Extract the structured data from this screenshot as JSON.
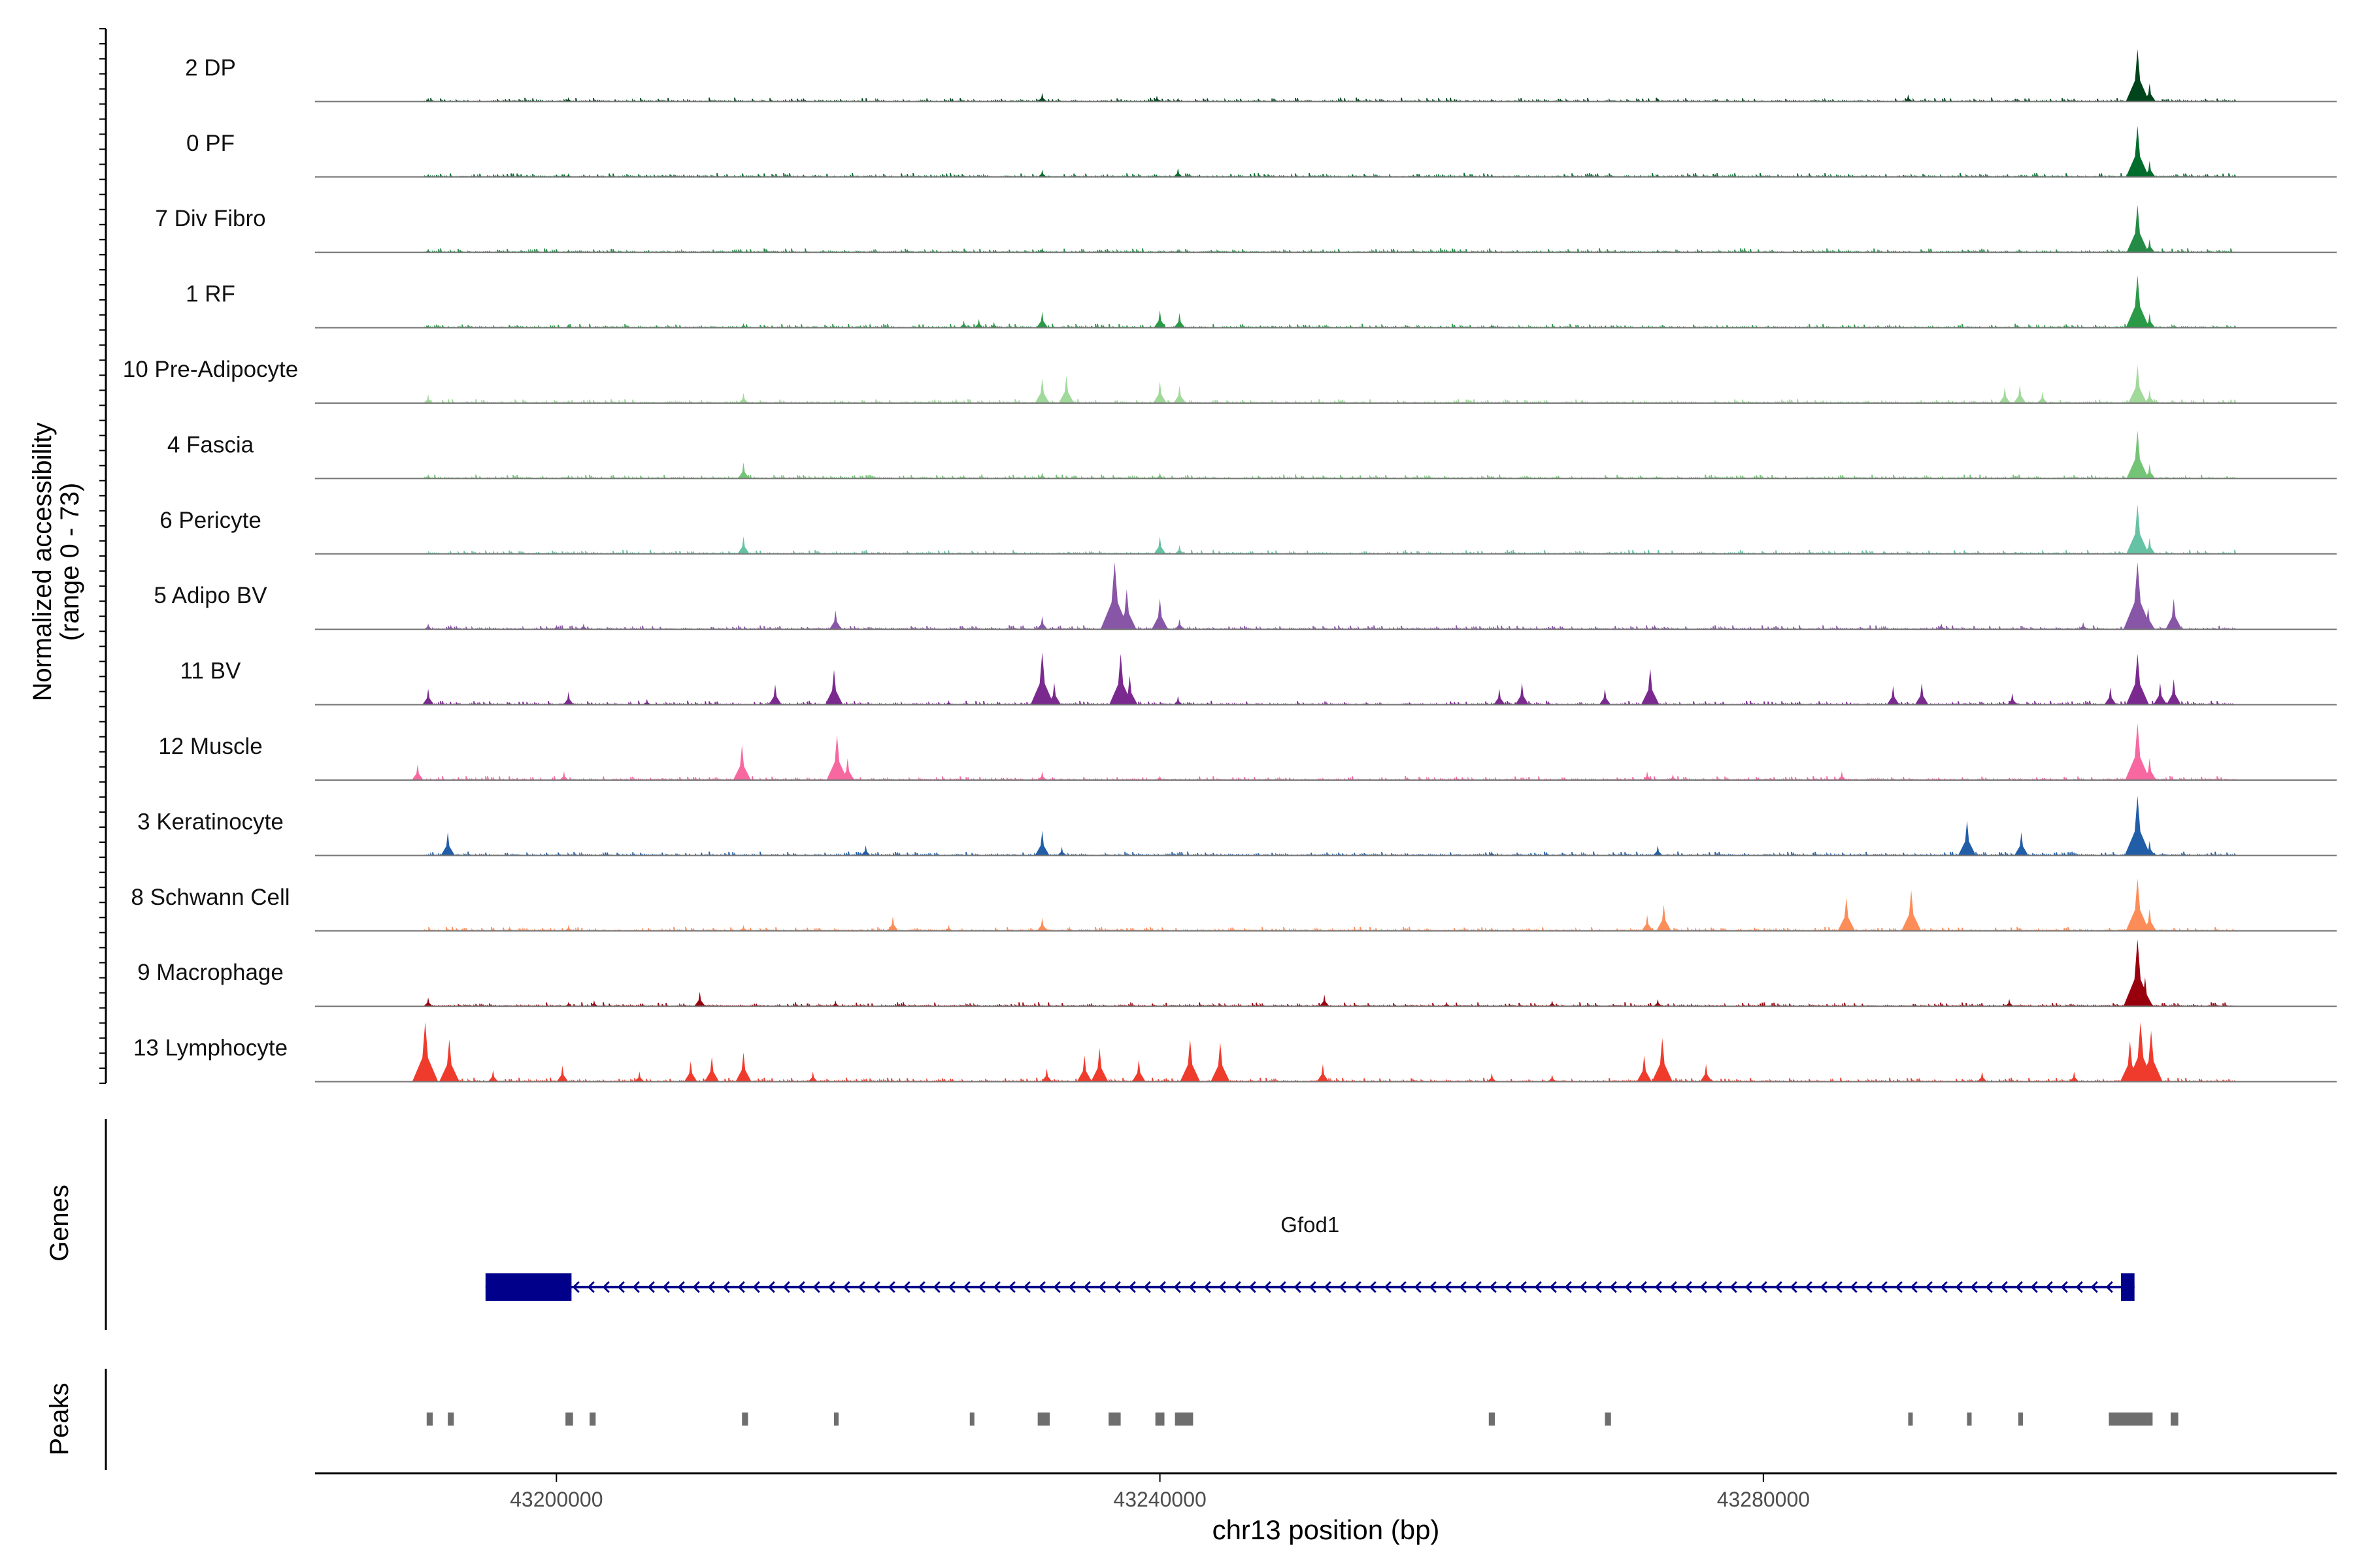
{
  "chart_data": {
    "type": "area",
    "title": "",
    "ylabel_line1": "Normalized accessibility",
    "ylabel_line2": "(range 0 - 73)",
    "ylim": [
      0,
      73
    ],
    "xlabel": "chr13 position (bp)",
    "xlim": [
      43184000,
      43318000
    ],
    "xticks": [
      43200000,
      43240000,
      43280000
    ],
    "xtick_labels": [
      "43200000",
      "43240000",
      "43280000"
    ],
    "tracks": [
      {
        "name": "2 DP",
        "color": "#00441B",
        "peaks": [
          [
            43191500,
            0.05
          ],
          [
            43200800,
            0.06
          ],
          [
            43232200,
            0.12
          ],
          [
            43239800,
            0.08
          ],
          [
            43241200,
            0.05
          ],
          [
            43262000,
            0.04
          ],
          [
            43273000,
            0.05
          ],
          [
            43289600,
            0.1
          ],
          [
            43304800,
            0.72
          ],
          [
            43305600,
            0.25
          ]
        ]
      },
      {
        "name": "0 PF",
        "color": "#006D2C",
        "peaks": [
          [
            43191500,
            0.04
          ],
          [
            43200800,
            0.05
          ],
          [
            43232200,
            0.1
          ],
          [
            43241200,
            0.12
          ],
          [
            43262000,
            0.04
          ],
          [
            43273000,
            0.04
          ],
          [
            43304800,
            0.7
          ],
          [
            43305600,
            0.22
          ]
        ]
      },
      {
        "name": "7 Div Fibro",
        "color": "#238B45",
        "peaks": [
          [
            43191500,
            0.05
          ],
          [
            43200800,
            0.04
          ],
          [
            43232200,
            0.06
          ],
          [
            43241200,
            0.05
          ],
          [
            43273000,
            0.04
          ],
          [
            43304800,
            0.65
          ],
          [
            43305600,
            0.18
          ]
        ]
      },
      {
        "name": "1 RF",
        "color": "#2B9A47",
        "peaks": [
          [
            43191500,
            0.04
          ],
          [
            43200800,
            0.05
          ],
          [
            43212400,
            0.06
          ],
          [
            43227000,
            0.1
          ],
          [
            43228000,
            0.12
          ],
          [
            43229000,
            0.08
          ],
          [
            43232200,
            0.22
          ],
          [
            43240000,
            0.24
          ],
          [
            43241300,
            0.2
          ],
          [
            43262000,
            0.05
          ],
          [
            43304800,
            0.72
          ],
          [
            43305600,
            0.2
          ]
        ]
      },
      {
        "name": "10 Pre-Adipocyte",
        "color": "#A1D99B",
        "peaks": [
          [
            43191500,
            0.12
          ],
          [
            43200800,
            0.04
          ],
          [
            43212400,
            0.14
          ],
          [
            43226500,
            0.06
          ],
          [
            43232200,
            0.34
          ],
          [
            43233800,
            0.38
          ],
          [
            43240000,
            0.3
          ],
          [
            43241300,
            0.24
          ],
          [
            43252000,
            0.05
          ],
          [
            43268000,
            0.05
          ],
          [
            43296000,
            0.22
          ],
          [
            43297000,
            0.25
          ],
          [
            43298500,
            0.16
          ],
          [
            43304800,
            0.52
          ],
          [
            43305600,
            0.18
          ]
        ]
      },
      {
        "name": "4 Fascia",
        "color": "#74C476",
        "peaks": [
          [
            43191500,
            0.06
          ],
          [
            43200800,
            0.05
          ],
          [
            43212400,
            0.22
          ],
          [
            43227000,
            0.05
          ],
          [
            43232200,
            0.08
          ],
          [
            43240000,
            0.08
          ],
          [
            43262000,
            0.04
          ],
          [
            43304800,
            0.66
          ],
          [
            43305600,
            0.2
          ]
        ]
      },
      {
        "name": "6 Pericyte",
        "color": "#66C2A4",
        "peaks": [
          [
            43212400,
            0.24
          ],
          [
            43240000,
            0.24
          ],
          [
            43241300,
            0.12
          ],
          [
            43288000,
            0.05
          ],
          [
            43304800,
            0.68
          ],
          [
            43305600,
            0.22
          ]
        ]
      },
      {
        "name": "5 Adipo BV",
        "color": "#8856A7",
        "peaks": [
          [
            43191500,
            0.08
          ],
          [
            43193000,
            0.06
          ],
          [
            43200000,
            0.06
          ],
          [
            43201800,
            0.08
          ],
          [
            43218500,
            0.26
          ],
          [
            43232200,
            0.18
          ],
          [
            43237000,
            0.92
          ],
          [
            43237800,
            0.55
          ],
          [
            43240000,
            0.42
          ],
          [
            43241300,
            0.14
          ],
          [
            43272800,
            0.06
          ],
          [
            43291800,
            0.08
          ],
          [
            43301200,
            0.1
          ],
          [
            43304800,
            0.92
          ],
          [
            43305500,
            0.3
          ],
          [
            43307200,
            0.42
          ]
        ]
      },
      {
        "name": "11 BV",
        "color": "#7A2A8E",
        "peaks": [
          [
            43191500,
            0.22
          ],
          [
            43200800,
            0.18
          ],
          [
            43206000,
            0.08
          ],
          [
            43214500,
            0.28
          ],
          [
            43218400,
            0.48
          ],
          [
            43226000,
            0.06
          ],
          [
            43232200,
            0.72
          ],
          [
            43233000,
            0.3
          ],
          [
            43237400,
            0.7
          ],
          [
            43238000,
            0.4
          ],
          [
            43241200,
            0.12
          ],
          [
            43262500,
            0.22
          ],
          [
            43264000,
            0.3
          ],
          [
            43269500,
            0.22
          ],
          [
            43272500,
            0.5
          ],
          [
            43288600,
            0.26
          ],
          [
            43290500,
            0.3
          ],
          [
            43296500,
            0.16
          ],
          [
            43303000,
            0.24
          ],
          [
            43304800,
            0.7
          ],
          [
            43306300,
            0.3
          ],
          [
            43307200,
            0.35
          ]
        ]
      },
      {
        "name": "12 Muscle",
        "color": "#F768A1",
        "peaks": [
          [
            43190800,
            0.22
          ],
          [
            43200500,
            0.12
          ],
          [
            43212300,
            0.48
          ],
          [
            43218600,
            0.62
          ],
          [
            43219300,
            0.3
          ],
          [
            43232200,
            0.12
          ],
          [
            43240000,
            0.06
          ],
          [
            43272300,
            0.12
          ],
          [
            43274000,
            0.08
          ],
          [
            43285200,
            0.12
          ],
          [
            43304800,
            0.78
          ],
          [
            43305600,
            0.3
          ]
        ]
      },
      {
        "name": "3 Keratinocyte",
        "color": "#225EA8",
        "peaks": [
          [
            43192800,
            0.32
          ],
          [
            43220500,
            0.14
          ],
          [
            43232200,
            0.34
          ],
          [
            43233500,
            0.12
          ],
          [
            43262000,
            0.06
          ],
          [
            43273000,
            0.14
          ],
          [
            43293500,
            0.48
          ],
          [
            43297100,
            0.32
          ],
          [
            43304800,
            0.82
          ],
          [
            43305600,
            0.2
          ]
        ]
      },
      {
        "name": "8 Schwann Cell",
        "color": "#FC8D59",
        "peaks": [
          [
            43196900,
            0.06
          ],
          [
            43200800,
            0.08
          ],
          [
            43212400,
            0.08
          ],
          [
            43222300,
            0.2
          ],
          [
            43226000,
            0.08
          ],
          [
            43232200,
            0.18
          ],
          [
            43234000,
            0.06
          ],
          [
            43262000,
            0.05
          ],
          [
            43272300,
            0.22
          ],
          [
            43273400,
            0.36
          ],
          [
            43285500,
            0.46
          ],
          [
            43289800,
            0.56
          ],
          [
            43304800,
            0.72
          ],
          [
            43305600,
            0.3
          ]
        ]
      },
      {
        "name": "9 Macrophage",
        "color": "#99000D",
        "peaks": [
          [
            43191500,
            0.12
          ],
          [
            43200800,
            0.06
          ],
          [
            43202500,
            0.08
          ],
          [
            43209500,
            0.2
          ],
          [
            43218500,
            0.08
          ],
          [
            43250900,
            0.16
          ],
          [
            43259000,
            0.06
          ],
          [
            43266000,
            0.08
          ],
          [
            43273000,
            0.1
          ],
          [
            43296300,
            0.1
          ],
          [
            43304800,
            0.92
          ],
          [
            43305300,
            0.4
          ]
        ]
      },
      {
        "name": "13 Lymphocyte",
        "color": "#EF3B2C",
        "peaks": [
          [
            43191300,
            0.82
          ],
          [
            43192900,
            0.58
          ],
          [
            43195800,
            0.16
          ],
          [
            43200400,
            0.22
          ],
          [
            43205500,
            0.14
          ],
          [
            43208900,
            0.28
          ],
          [
            43210300,
            0.34
          ],
          [
            43212400,
            0.4
          ],
          [
            43217000,
            0.14
          ],
          [
            43232500,
            0.18
          ],
          [
            43235000,
            0.36
          ],
          [
            43236000,
            0.46
          ],
          [
            43238600,
            0.3
          ],
          [
            43242000,
            0.58
          ],
          [
            43244000,
            0.54
          ],
          [
            43250800,
            0.24
          ],
          [
            43262000,
            0.12
          ],
          [
            43266000,
            0.1
          ],
          [
            43272100,
            0.36
          ],
          [
            43273300,
            0.6
          ],
          [
            43276200,
            0.24
          ],
          [
            43294500,
            0.14
          ],
          [
            43300600,
            0.14
          ],
          [
            43304300,
            0.56
          ],
          [
            43305000,
            0.82
          ],
          [
            43305700,
            0.7
          ]
        ]
      }
    ],
    "genes_label": "Genes",
    "genes": [
      {
        "name": "Gfod1",
        "start": 43195300,
        "end": 43304600,
        "strand": "-",
        "exons": [
          [
            43195300,
            43201000
          ],
          [
            43303700,
            43304600
          ]
        ]
      }
    ],
    "peaks_label": "Peaks",
    "peak_regions": [
      [
        43191400,
        43191800
      ],
      [
        43192800,
        43193200
      ],
      [
        43200600,
        43201100
      ],
      [
        43202200,
        43202600
      ],
      [
        43212300,
        43212700
      ],
      [
        43218400,
        43218700
      ],
      [
        43227400,
        43227600
      ],
      [
        43231900,
        43232700
      ],
      [
        43236600,
        43237400
      ],
      [
        43239700,
        43240300
      ],
      [
        43241000,
        43242200
      ],
      [
        43261800,
        43262200
      ],
      [
        43269500,
        43269900
      ],
      [
        43289600,
        43289900
      ],
      [
        43293500,
        43293800
      ],
      [
        43296900,
        43297100
      ],
      [
        43302900,
        43305800
      ],
      [
        43307000,
        43307500
      ]
    ]
  }
}
